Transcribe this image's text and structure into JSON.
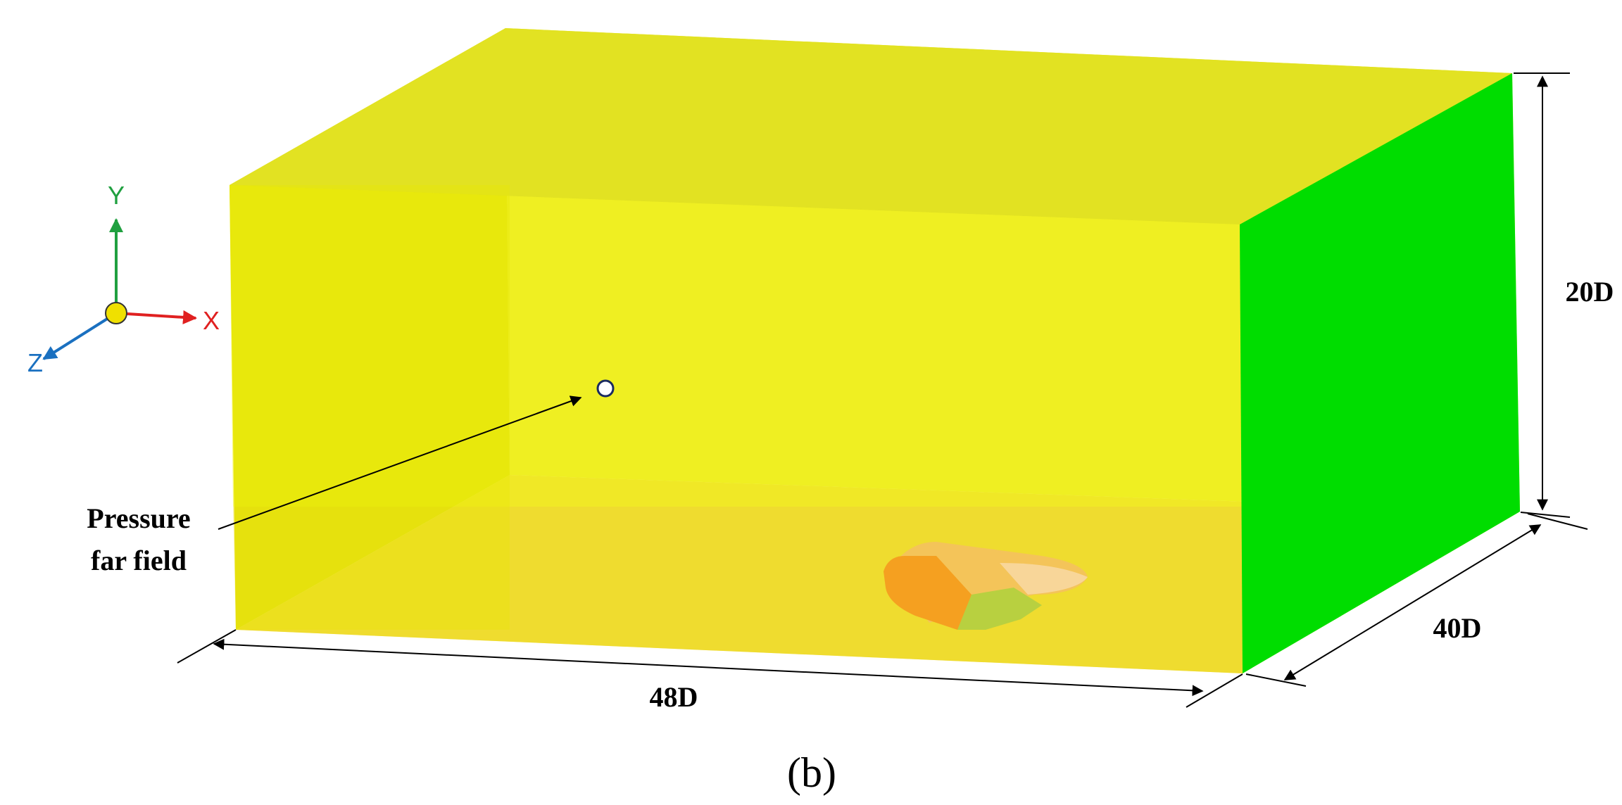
{
  "axes": {
    "y": "Y",
    "x": "X",
    "z": "Z"
  },
  "annotation": {
    "lines": [
      "Pressure",
      "far field"
    ]
  },
  "dimensions": {
    "height": "20D",
    "depth": "40D",
    "length": "48D"
  },
  "caption": "(b)"
}
